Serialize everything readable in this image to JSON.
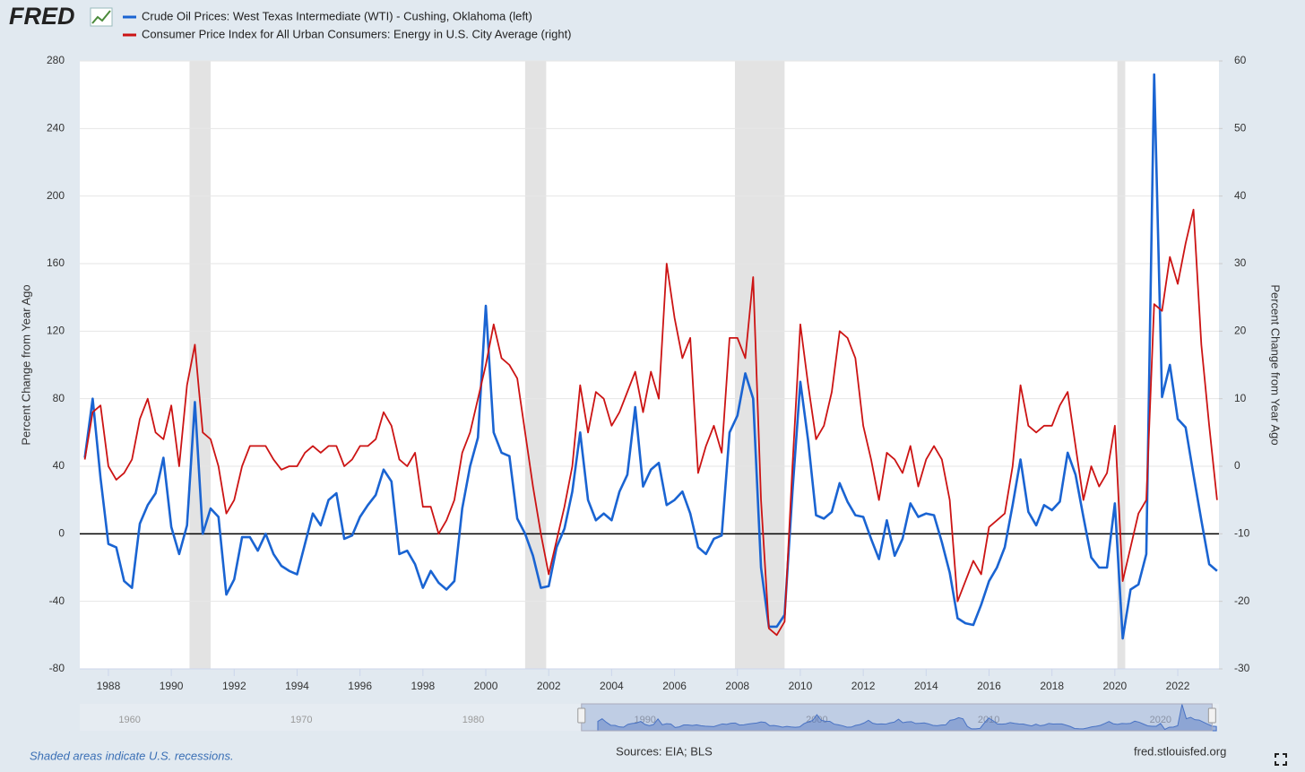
{
  "logo": "FRED",
  "chart_data": {
    "type": "line",
    "ylabel": "Percent Change from Year Ago",
    "y2label": "Percent Change from Year Ago",
    "x": [
      1987.25,
      1987.5,
      1987.75,
      1988,
      1988.25,
      1988.5,
      1988.75,
      1989,
      1989.25,
      1989.5,
      1989.75,
      1990,
      1990.25,
      1990.5,
      1990.75,
      1991,
      1991.25,
      1991.5,
      1991.75,
      1992,
      1992.25,
      1992.5,
      1992.75,
      1993,
      1993.25,
      1993.5,
      1993.75,
      1994,
      1994.25,
      1994.5,
      1994.75,
      1995,
      1995.25,
      1995.5,
      1995.75,
      1996,
      1996.25,
      1996.5,
      1996.75,
      1997,
      1997.25,
      1997.5,
      1997.75,
      1998,
      1998.25,
      1998.5,
      1998.75,
      1999,
      1999.25,
      1999.5,
      1999.75,
      2000,
      2000.25,
      2000.5,
      2000.75,
      2001,
      2001.25,
      2001.5,
      2001.75,
      2002,
      2002.25,
      2002.5,
      2002.75,
      2003,
      2003.25,
      2003.5,
      2003.75,
      2004,
      2004.25,
      2004.5,
      2004.75,
      2005,
      2005.25,
      2005.5,
      2005.75,
      2006,
      2006.25,
      2006.5,
      2006.75,
      2007,
      2007.25,
      2007.5,
      2007.75,
      2008,
      2008.25,
      2008.5,
      2008.75,
      2009,
      2009.25,
      2009.5,
      2009.75,
      2010,
      2010.25,
      2010.5,
      2010.75,
      2011,
      2011.25,
      2011.5,
      2011.75,
      2012,
      2012.25,
      2012.5,
      2012.75,
      2013,
      2013.25,
      2013.5,
      2013.75,
      2014,
      2014.25,
      2014.5,
      2014.75,
      2015,
      2015.25,
      2015.5,
      2015.75,
      2016,
      2016.25,
      2016.5,
      2016.75,
      2017,
      2017.25,
      2017.5,
      2017.75,
      2018,
      2018.25,
      2018.5,
      2018.75,
      2019,
      2019.25,
      2019.5,
      2019.75,
      2020,
      2020.25,
      2020.5,
      2020.75,
      2021,
      2021.25,
      2021.5,
      2021.75,
      2022,
      2022.25,
      2022.5,
      2022.75,
      2023,
      2023.25
    ],
    "series": [
      {
        "name": "Crude Oil Prices: West Texas Intermediate (WTI) - Cushing, Oklahoma (left)",
        "color": "#1a64d2",
        "axis": "y",
        "values": [
          45,
          80,
          33,
          -6,
          -8,
          -28,
          -32,
          6,
          17,
          24,
          45,
          4,
          -12,
          5,
          78,
          0,
          15,
          10,
          -36,
          -27,
          -2,
          -2,
          -10,
          0,
          -12,
          -19,
          -22,
          -24,
          -6,
          12,
          5,
          20,
          24,
          -3,
          -1,
          10,
          17,
          23,
          38,
          31,
          -12,
          -10,
          -18,
          -32,
          -22,
          -29,
          -33,
          -28,
          15,
          40,
          57,
          135,
          60,
          48,
          46,
          9,
          0,
          -13,
          -32,
          -31,
          -8,
          3,
          25,
          60,
          20,
          8,
          12,
          8,
          25,
          35,
          75,
          28,
          38,
          42,
          17,
          20,
          25,
          12,
          -8,
          -12,
          -3,
          -1,
          60,
          70,
          95,
          80,
          -20,
          -55,
          -55,
          -48,
          25,
          90,
          55,
          11,
          9,
          13,
          30,
          19,
          11,
          10,
          -3,
          -15,
          8,
          -13,
          -3,
          18,
          10,
          12,
          11,
          -5,
          -23,
          -50,
          -53,
          -54,
          -42,
          -28,
          -20,
          -8,
          17,
          44,
          13,
          5,
          17,
          14,
          19,
          48,
          35,
          10,
          -14,
          -20,
          -20,
          18,
          -62,
          -33,
          -30,
          -12,
          272,
          81,
          100,
          68,
          63,
          35,
          8,
          -18,
          -22
        ]
      },
      {
        "name": "Consumer Price Index for All Urban Consumers: Energy in U.S. City Average (right)",
        "color": "#cc1414",
        "axis": "y2",
        "values": [
          1,
          8,
          9,
          0,
          -2,
          -1,
          1,
          7,
          10,
          5,
          4,
          9,
          0,
          12,
          18,
          5,
          4,
          0,
          -7,
          -5,
          0,
          3,
          3,
          3,
          1,
          -0.5,
          0,
          0,
          2,
          3,
          2,
          3,
          3,
          0,
          1,
          3,
          3,
          4,
          8,
          6,
          1,
          0,
          2,
          -6,
          -6,
          -10,
          -8,
          -5,
          2,
          5,
          10,
          15,
          21,
          16,
          15,
          13,
          5,
          -3,
          -10,
          -16,
          -11,
          -6,
          0,
          12,
          5,
          11,
          10,
          6,
          8,
          11,
          14,
          8,
          14,
          10,
          30,
          22,
          16,
          19,
          -1,
          3,
          6,
          2,
          19,
          19,
          16,
          28,
          -5,
          -24,
          -25,
          -23,
          0,
          21,
          12,
          4,
          6,
          11,
          20,
          19,
          16,
          6,
          1,
          -5,
          2,
          1,
          -1,
          3,
          -3,
          1,
          3,
          1,
          -5,
          -20,
          -17,
          -14,
          -16,
          -9,
          -8,
          -7,
          0,
          12,
          6,
          5,
          6,
          6,
          9,
          11,
          3,
          -5,
          0,
          -3,
          -1,
          6,
          -17,
          -12,
          -7,
          -5,
          24,
          23,
          31,
          27,
          33,
          38,
          18,
          6,
          -5
        ]
      }
    ],
    "xlim": [
      1987.09,
      2023.31
    ],
    "xticks": [
      1988,
      1990,
      1992,
      1994,
      1996,
      1998,
      2000,
      2002,
      2004,
      2006,
      2008,
      2010,
      2012,
      2014,
      2016,
      2018,
      2020,
      2022
    ],
    "ylim": [
      -80,
      280
    ],
    "yticks": [
      -80,
      -40,
      0,
      40,
      80,
      120,
      160,
      200,
      240,
      280
    ],
    "y2lim": [
      -30,
      60
    ],
    "y2ticks": [
      -30,
      -20,
      -10,
      0,
      10,
      20,
      30,
      40,
      50,
      60
    ],
    "grid": true,
    "plot_line_y": 0,
    "recessions": [
      [
        1990.58,
        1991.25
      ],
      [
        2001.25,
        2001.92
      ],
      [
        2007.92,
        2009.5
      ],
      [
        2020.08,
        2020.33
      ]
    ],
    "recession_note": "Shaded areas indicate U.S. recessions.",
    "navigator": {
      "xlim": [
        1957.1,
        2023.4
      ],
      "ticks": [
        1960,
        1970,
        1980,
        1990,
        2000,
        2010,
        2020
      ],
      "range": [
        1986.3,
        2023.0
      ]
    }
  },
  "sources": "Sources: EIA; BLS",
  "site": "fred.stlouisfed.org"
}
